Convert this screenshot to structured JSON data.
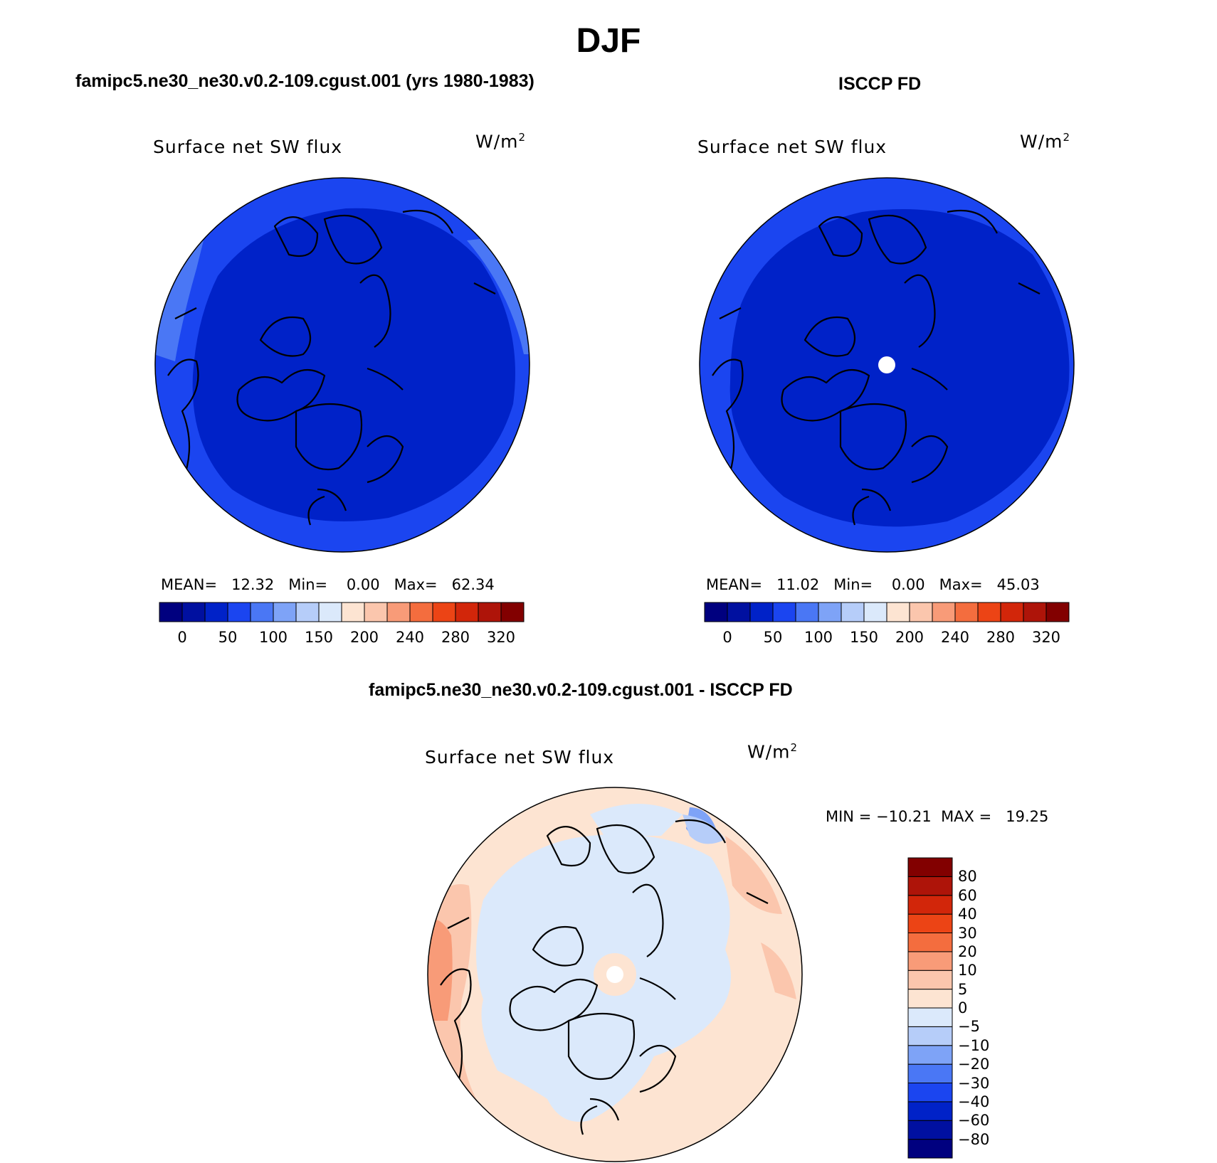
{
  "title": "DJF",
  "panels": [
    {
      "id": "test",
      "header": "famipc5.ne30_ne30.v0.2-109.cgust.001 (yrs 1980-1983)",
      "variable": "Surface net SW flux",
      "units": "W/m",
      "units_sup": "2",
      "stats": {
        "mean_label": "MEAN=",
        "mean": "12.32",
        "min_label": "Min=",
        "min": "0.00",
        "max_label": "Max=",
        "max": "62.34"
      },
      "hole": false
    },
    {
      "id": "obs",
      "header": "ISCCP FD",
      "variable": "Surface net SW flux",
      "units": "W/m",
      "units_sup": "2",
      "stats": {
        "mean_label": "MEAN=",
        "mean": "11.02",
        "min_label": "Min=",
        "min": "0.00",
        "max_label": "Max=",
        "max": "45.03"
      },
      "hole": true
    }
  ],
  "diff_panel": {
    "header": "famipc5.ne30_ne30.v0.2-109.cgust.001 - ISCCP FD",
    "variable": "Surface net SW flux",
    "units": "W/m",
    "units_sup": "2",
    "stats": {
      "min_label": "MIN =",
      "min": "−10.21",
      "max_label": "MAX =",
      "max": "19.25"
    }
  },
  "top_colorbar": {
    "colors": [
      "#00007f",
      "#0010a0",
      "#0022c8",
      "#1b45f0",
      "#4a77f5",
      "#7ea3f7",
      "#b6cdf9",
      "#dbe9fb",
      "#fde4d2",
      "#fbc6ad",
      "#f89b78",
      "#f46d3e",
      "#ec4415",
      "#d2260a",
      "#ae1409",
      "#820000"
    ],
    "labels": [
      "0",
      "50",
      "100",
      "150",
      "200",
      "240",
      "280",
      "320"
    ]
  },
  "diff_colorbar": {
    "colors_bottom_to_top": [
      "#00007f",
      "#0010a0",
      "#0022c8",
      "#1b45f0",
      "#4a77f5",
      "#7ea3f7",
      "#b6cdf9",
      "#dbe9fb",
      "#fde4d2",
      "#fbc6ad",
      "#f89b78",
      "#f46d3e",
      "#ec4415",
      "#d2260a",
      "#ae1409",
      "#820000"
    ],
    "labels_top_to_bottom": [
      "80",
      "60",
      "40",
      "30",
      "20",
      "10",
      "5",
      "0",
      "−5",
      "−10",
      "−20",
      "−30",
      "−40",
      "−60",
      "−80"
    ]
  },
  "fill_colors": {
    "field_dark": "#0022c8",
    "field_mid": "#1b45f0",
    "field_light": "#4a77f5",
    "diff_neg": "#dbe9fb",
    "diff_neg2": "#b6cdf9",
    "diff_neg3": "#7ea3f7",
    "diff_pos": "#fde4d2",
    "diff_pos2": "#fbc6ad",
    "diff_pos3": "#f89b78"
  }
}
